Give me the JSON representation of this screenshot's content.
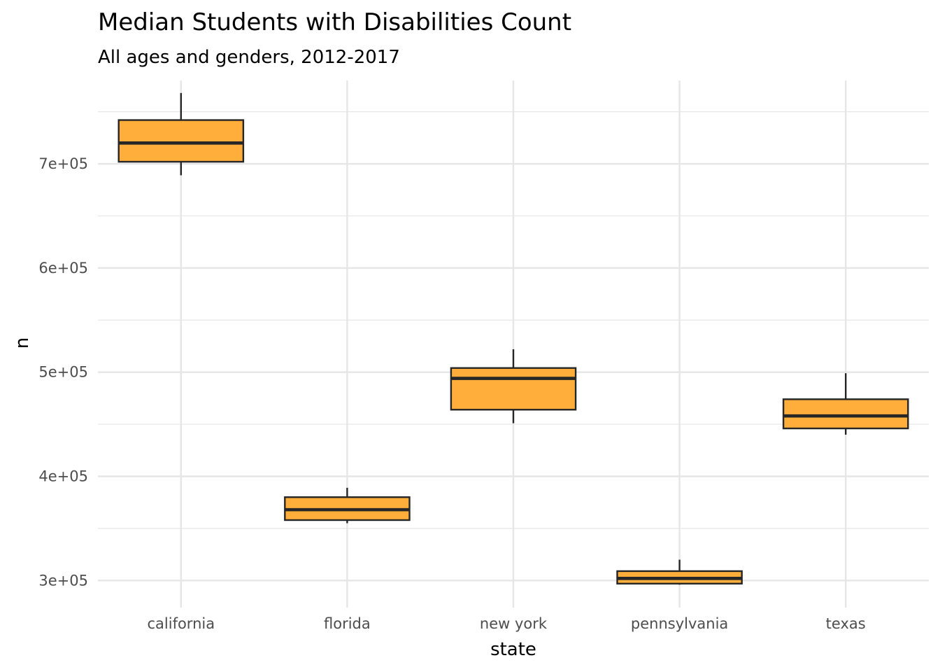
{
  "chart_data": {
    "type": "boxplot",
    "title": "Median Students with Disabilities Count",
    "subtitle": "All ages and genders, 2012-2017",
    "xlabel": "state",
    "ylabel": "n",
    "categories": [
      "california",
      "florida",
      "new york",
      "pennsylvania",
      "texas"
    ],
    "boxes": [
      {
        "category": "california",
        "min": 689000,
        "q1": 702000,
        "median": 720000,
        "q3": 742000,
        "max": 768000
      },
      {
        "category": "florida",
        "min": 355000,
        "q1": 358000,
        "median": 368000,
        "q3": 380000,
        "max": 389000
      },
      {
        "category": "new york",
        "min": 451000,
        "q1": 464000,
        "median": 494000,
        "q3": 504000,
        "max": 522000
      },
      {
        "category": "pennsylvania",
        "min": 296000,
        "q1": 297000,
        "median": 302000,
        "q3": 309000,
        "max": 320000
      },
      {
        "category": "texas",
        "min": 440000,
        "q1": 446000,
        "median": 458000,
        "q3": 474000,
        "max": 499000
      }
    ],
    "ylim": [
      274000,
      780000
    ],
    "yticks": [
      300000,
      400000,
      500000,
      600000,
      700000
    ],
    "ytick_labels": [
      "3e+05",
      "4e+05",
      "5e+05",
      "6e+05",
      "7e+05"
    ],
    "grid": true,
    "colors": {
      "box_fill": "#ffae3b",
      "box_stroke": "#262626",
      "grid": "#e6e6e6"
    }
  }
}
